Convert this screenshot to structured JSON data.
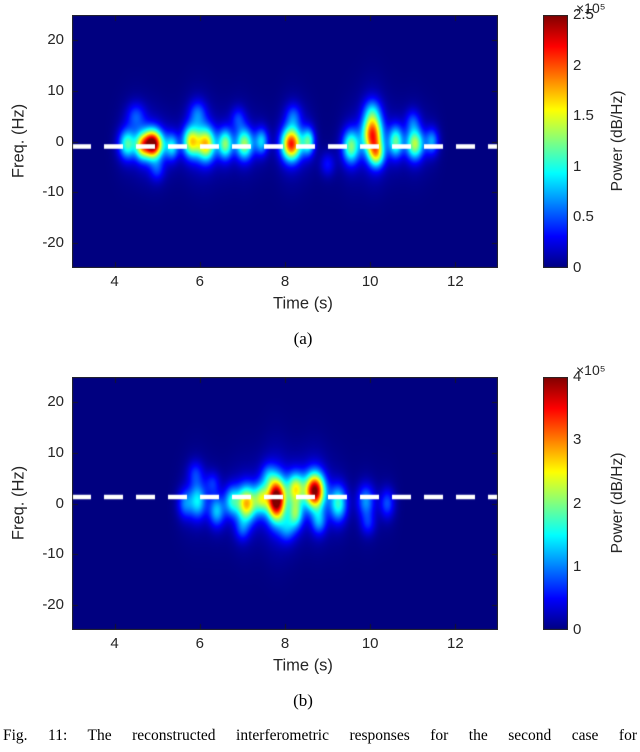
{
  "caption": "Fig. 11: The reconstructed interferometric responses for the second case for",
  "chart_data": [
    {
      "type": "heatmap",
      "subtype": "spectrogram",
      "panel_label": "(a)",
      "xlabel": "Time (s)",
      "ylabel": "Freq. (Hz)",
      "xlim": [
        3,
        13
      ],
      "ylim": [
        -25,
        25
      ],
      "xticks": [
        4,
        6,
        8,
        10,
        12
      ],
      "yticks": [
        20,
        10,
        0,
        -10,
        -20
      ],
      "grid": false,
      "colormap": "jet",
      "background_color": "#000084",
      "colorbar": {
        "label": "Power (dB/Hz)",
        "exponent": "×10⁵",
        "ticks": [
          0,
          0.5,
          1,
          1.5,
          2,
          2.5
        ],
        "vmax": 2.5
      },
      "annotation_dashed_line": {
        "freq_hz": -1.0,
        "color": "#ffffff"
      },
      "blob_fields": [
        "time_s",
        "freq_hz",
        "power_frac_of_vmax",
        "sigma_t_s",
        "sigma_f_hz"
      ],
      "blobs": [
        [
          4.3,
          -0.5,
          0.4,
          0.14,
          2.0
        ],
        [
          4.62,
          -1.0,
          0.3,
          0.1,
          1.8
        ],
        [
          4.88,
          -0.5,
          1.0,
          0.17,
          1.9
        ],
        [
          5.35,
          -1.0,
          0.3,
          0.11,
          1.8
        ],
        [
          5.8,
          0.0,
          0.55,
          0.14,
          2.1
        ],
        [
          6.15,
          -0.5,
          0.6,
          0.15,
          2.3
        ],
        [
          6.6,
          -0.5,
          0.45,
          0.12,
          2.0
        ],
        [
          7.05,
          -0.5,
          0.48,
          0.14,
          2.1
        ],
        [
          7.45,
          0.0,
          0.3,
          0.11,
          1.8
        ],
        [
          8.15,
          -0.5,
          0.78,
          0.16,
          2.2
        ],
        [
          8.55,
          0.0,
          0.38,
          0.1,
          1.8
        ],
        [
          9.55,
          -1.0,
          0.45,
          0.14,
          2.3
        ],
        [
          10.05,
          1.5,
          0.72,
          0.16,
          2.6
        ],
        [
          10.15,
          -2.5,
          0.45,
          0.13,
          1.8
        ],
        [
          10.6,
          0.0,
          0.42,
          0.12,
          2.1
        ],
        [
          11.05,
          -0.5,
          0.5,
          0.14,
          2.1
        ],
        [
          11.45,
          0.0,
          0.25,
          0.11,
          1.8
        ],
        [
          4.5,
          5.0,
          0.16,
          0.15,
          1.8
        ],
        [
          5.95,
          5.5,
          0.18,
          0.14,
          1.8
        ],
        [
          6.9,
          4.5,
          0.14,
          0.12,
          1.6
        ],
        [
          8.2,
          5.0,
          0.16,
          0.13,
          1.7
        ],
        [
          10.05,
          6.0,
          0.18,
          0.14,
          1.8
        ],
        [
          9.0,
          -4.5,
          0.12,
          0.12,
          1.6
        ],
        [
          11.0,
          4.0,
          0.14,
          0.12,
          1.6
        ],
        [
          5.0,
          -5.5,
          0.13,
          0.12,
          1.6
        ]
      ]
    },
    {
      "type": "heatmap",
      "subtype": "spectrogram",
      "panel_label": "(b)",
      "xlabel": "Time (s)",
      "ylabel": "Freq. (Hz)",
      "xlim": [
        3,
        13
      ],
      "ylim": [
        -25,
        25
      ],
      "xticks": [
        4,
        6,
        8,
        10,
        12
      ],
      "yticks": [
        20,
        10,
        0,
        -10,
        -20
      ],
      "grid": false,
      "colormap": "jet",
      "background_color": "#000084",
      "colorbar": {
        "label": "Power (dB/Hz)",
        "exponent": "×10⁵",
        "ticks": [
          0,
          1,
          2,
          3,
          4
        ],
        "vmax": 4
      },
      "annotation_dashed_line": {
        "freq_hz": 1.3,
        "color": "#ffffff"
      },
      "blob_fields": [
        "time_s",
        "freq_hz",
        "power_frac_of_vmax",
        "sigma_t_s",
        "sigma_f_hz"
      ],
      "blobs": [
        [
          5.65,
          0.0,
          0.2,
          0.12,
          2.0
        ],
        [
          5.95,
          0.5,
          0.32,
          0.14,
          2.4
        ],
        [
          6.4,
          -1.5,
          0.28,
          0.13,
          2.1
        ],
        [
          6.75,
          0.5,
          0.3,
          0.12,
          2.0
        ],
        [
          7.1,
          0.0,
          0.62,
          0.16,
          2.4
        ],
        [
          7.45,
          1.0,
          0.4,
          0.12,
          2.0
        ],
        [
          7.8,
          0.8,
          1.0,
          0.15,
          2.9
        ],
        [
          8.25,
          3.0,
          0.5,
          0.14,
          2.1
        ],
        [
          8.25,
          -2.0,
          0.38,
          0.12,
          2.0
        ],
        [
          8.7,
          2.5,
          0.92,
          0.16,
          2.4
        ],
        [
          9.25,
          0.0,
          0.38,
          0.14,
          2.4
        ],
        [
          9.9,
          0.5,
          0.24,
          0.14,
          2.2
        ],
        [
          10.4,
          0.0,
          0.18,
          0.12,
          2.0
        ],
        [
          5.9,
          6.0,
          0.13,
          0.13,
          1.7
        ],
        [
          7.0,
          -5.0,
          0.14,
          0.12,
          1.7
        ],
        [
          8.05,
          -5.0,
          0.18,
          0.13,
          1.8
        ],
        [
          8.8,
          -3.5,
          0.22,
          0.12,
          1.8
        ],
        [
          9.95,
          -4.0,
          0.12,
          0.12,
          1.6
        ],
        [
          6.3,
          4.0,
          0.13,
          0.12,
          1.6
        ],
        [
          7.6,
          5.5,
          0.15,
          0.12,
          1.7
        ]
      ]
    }
  ]
}
